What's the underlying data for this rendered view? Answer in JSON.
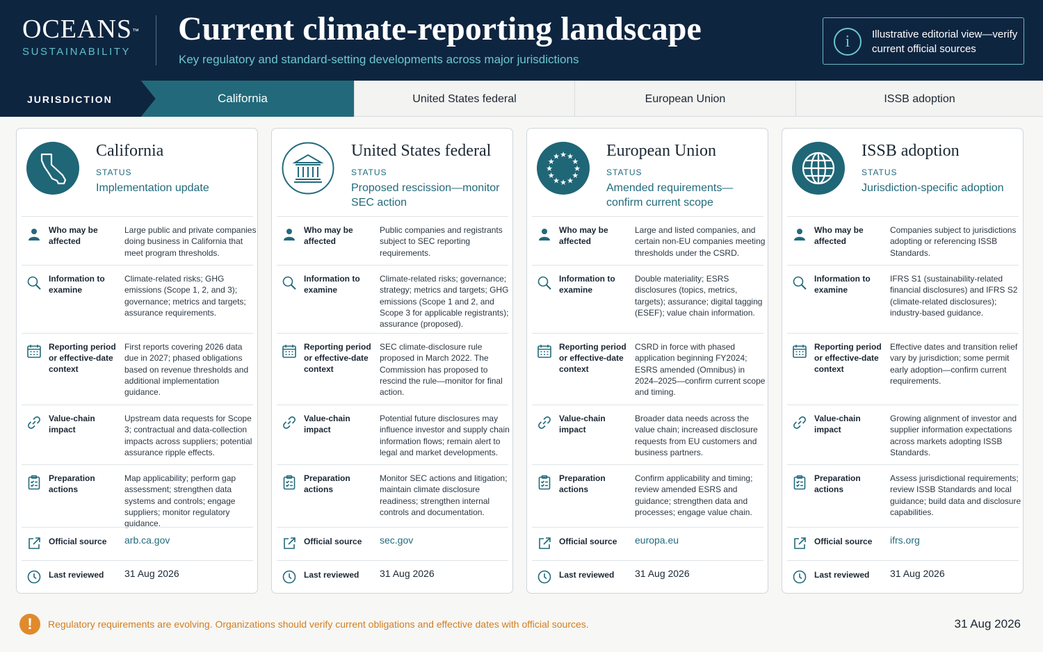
{
  "header": {
    "logo_main": "OCEANS",
    "logo_tm": "™",
    "logo_sub": "SUSTAINABILITY",
    "title": "Current climate-reporting landscape",
    "subtitle": "Key regulatory and standard-setting developments across major jurisdictions",
    "note": "Illustrative editorial view—verify current official sources",
    "note_icon": "info-icon"
  },
  "tabs": {
    "label": "JURISDICTION",
    "items": [
      "California",
      "United States federal",
      "European Union",
      "ISSB adoption"
    ],
    "active": "California"
  },
  "row_labels": {
    "who": "Who may be affected",
    "info": "Information to examine",
    "period": "Reporting period or effective-date context",
    "chain": "Value-chain impact",
    "prep": "Preparation actions",
    "source": "Official source",
    "reviewed": "Last reviewed"
  },
  "status_label": "STATUS",
  "cards": [
    {
      "title": "California",
      "icon": "california-map-icon",
      "status": "Implementation update",
      "who": "Large public and private companies doing business in California that meet program thresholds.",
      "info": "Climate-related risks; GHG emissions (Scope 1, 2, and 3); governance; metrics and targets; assurance requirements.",
      "period": "First reports covering 2026 data due in 2027; phased obligations based on revenue thresholds and additional implementation guidance.",
      "chain": "Upstream data requests for Scope 3; contractual and data-collection impacts across suppliers; potential assurance ripple effects.",
      "prep": "Map applicability; perform gap assessment; strengthen data systems and controls; engage suppliers; monitor regulatory guidance.",
      "source": "arb.ca.gov",
      "reviewed": "31 Aug 2026"
    },
    {
      "title": "United States federal",
      "icon": "government-building-icon",
      "status": "Proposed rescission—monitor SEC action",
      "who": "Public companies and registrants subject to SEC reporting requirements.",
      "info": "Climate-related risks; governance; strategy; metrics and targets; GHG emissions (Scope 1 and 2, and Scope 3 for applicable registrants); assurance (proposed).",
      "period": "SEC climate-disclosure rule proposed in March 2022. The Commission has proposed to rescind the rule—monitor for final action.",
      "chain": "Potential future disclosures may influence investor and supply chain information flows; remain alert to legal and market developments.",
      "prep": "Monitor SEC actions and litigation; maintain climate disclosure readiness; strengthen internal controls and documentation.",
      "source": "sec.gov",
      "reviewed": "31 Aug 2026"
    },
    {
      "title": "European Union",
      "icon": "eu-stars-icon",
      "status": "Amended requirements—confirm current scope",
      "who": "Large and listed companies, and certain non-EU companies meeting thresholds under the CSRD.",
      "info": "Double materiality; ESRS disclosures (topics, metrics, targets); assurance; digital tagging (ESEF); value chain information.",
      "period": "CSRD in force with phased application beginning FY2024; ESRS amended (Omnibus) in 2024–2025—confirm current scope and timing.",
      "chain": "Broader data needs across the value chain; increased disclosure requests from EU customers and business partners.",
      "prep": "Confirm applicability and timing; review amended ESRS and guidance; strengthen data and processes; engage value chain.",
      "source": "europa.eu",
      "reviewed": "31 Aug 2026"
    },
    {
      "title": "ISSB adoption",
      "icon": "globe-icon",
      "status": "Jurisdiction-specific adoption",
      "who": "Companies subject to jurisdictions adopting or referencing ISSB Standards.",
      "info": "IFRS S1 (sustainability-related financial disclosures) and IFRS S2 (climate-related disclosures); industry-based guidance.",
      "period": "Effective dates and transition relief vary by jurisdiction; some permit early adoption—confirm current requirements.",
      "chain": "Growing alignment of investor and supplier information expectations across markets adopting ISSB Standards.",
      "prep": "Assess jurisdictional requirements; review ISSB Standards and local guidance; build data and disclosure capabilities.",
      "source": "ifrs.org",
      "reviewed": "31 Aug 2026"
    }
  ],
  "footer": {
    "icon": "warning-icon",
    "text": "Regulatory requirements are evolving. Organizations should verify current obligations and effective dates with official sources.",
    "date": "31 Aug 2026"
  },
  "colors": {
    "navy": "#0e2540",
    "teal": "#226a7b",
    "accent": "#6cc7cc",
    "warning": "#e08a2c"
  }
}
